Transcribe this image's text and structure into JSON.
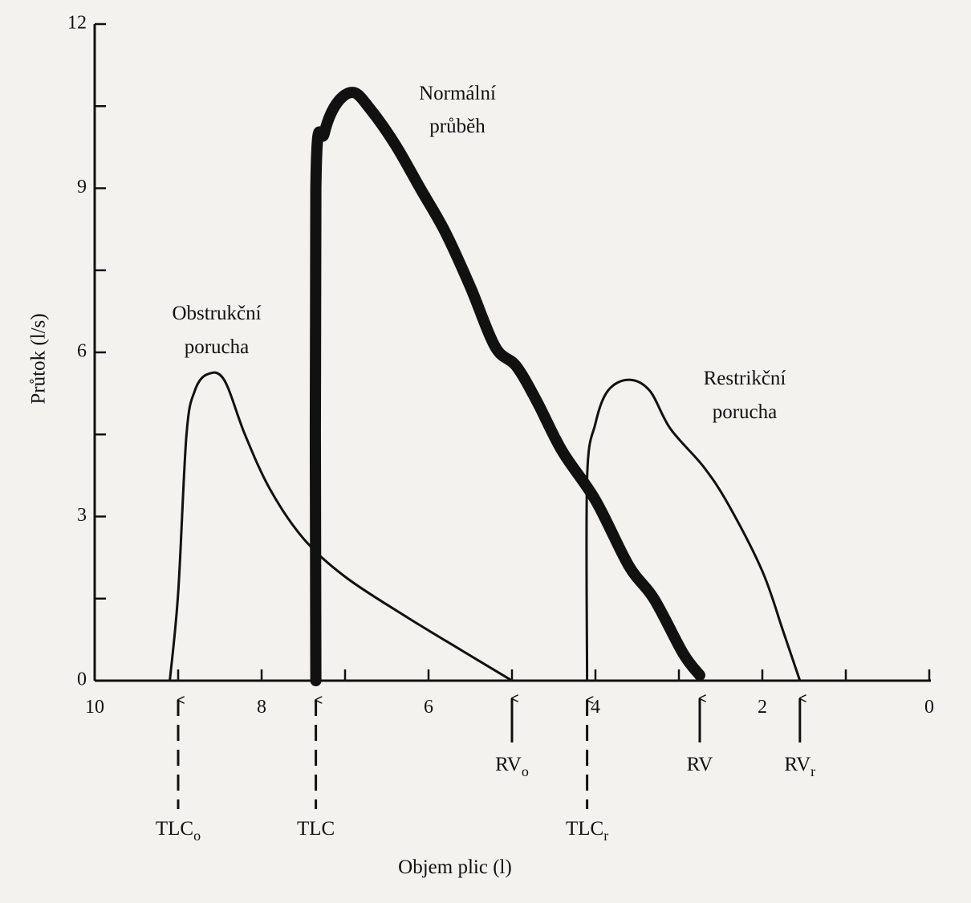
{
  "chart_data": {
    "type": "line",
    "xlabel": "Objem plic (l)",
    "ylabel": "Průtok (l/s)",
    "xlim": [
      10,
      0
    ],
    "ylim": [
      0,
      12
    ],
    "x_ticks": [
      10,
      8,
      6,
      4,
      2,
      0
    ],
    "x_tick_labels": [
      "10",
      "8",
      "6",
      "4",
      "2",
      "0"
    ],
    "y_ticks": [
      0,
      3,
      6,
      9,
      12
    ],
    "y_tick_labels": [
      "0",
      "3",
      "6",
      "9",
      "12"
    ],
    "minor_x_ticks": [
      9,
      7,
      5,
      3,
      1
    ],
    "minor_y_ticks": [
      1.5,
      4.5,
      7.5,
      10.5
    ],
    "series": [
      {
        "name": "Obstrukční porucha",
        "labels": [
          "Obstrukční",
          "porucha"
        ],
        "style": "thin",
        "points": [
          [
            9.1,
            0
          ],
          [
            9.0,
            1.6
          ],
          [
            8.9,
            4.5
          ],
          [
            8.8,
            5.3
          ],
          [
            8.65,
            5.6
          ],
          [
            8.45,
            5.5
          ],
          [
            8.2,
            4.5
          ],
          [
            7.9,
            3.5
          ],
          [
            7.5,
            2.6
          ],
          [
            7.0,
            1.9
          ],
          [
            6.3,
            1.2
          ],
          [
            5.6,
            0.55
          ],
          [
            5.0,
            0
          ]
        ]
      },
      {
        "name": "Normální průběh",
        "labels": [
          "Normální",
          "průběh"
        ],
        "style": "thick",
        "points": [
          [
            7.35,
            0
          ],
          [
            7.35,
            9.0
          ],
          [
            7.25,
            10.0
          ],
          [
            7.1,
            10.55
          ],
          [
            6.9,
            10.75
          ],
          [
            6.7,
            10.45
          ],
          [
            6.4,
            9.8
          ],
          [
            6.1,
            9.0
          ],
          [
            5.8,
            8.2
          ],
          [
            5.5,
            7.2
          ],
          [
            5.2,
            6.1
          ],
          [
            4.95,
            5.75
          ],
          [
            4.7,
            5.1
          ],
          [
            4.4,
            4.2
          ],
          [
            4.0,
            3.3
          ],
          [
            3.6,
            2.1
          ],
          [
            3.3,
            1.5
          ],
          [
            2.95,
            0.5
          ],
          [
            2.75,
            0.1
          ]
        ]
      },
      {
        "name": "Restrikční porucha",
        "labels": [
          "Restrikční",
          "porucha"
        ],
        "style": "thin",
        "points": [
          [
            4.1,
            0
          ],
          [
            4.1,
            3.7
          ],
          [
            4.0,
            4.7
          ],
          [
            3.85,
            5.3
          ],
          [
            3.6,
            5.5
          ],
          [
            3.35,
            5.3
          ],
          [
            3.1,
            4.6
          ],
          [
            2.7,
            3.9
          ],
          [
            2.4,
            3.2
          ],
          [
            2.0,
            2.0
          ],
          [
            1.75,
            0.9
          ],
          [
            1.55,
            0
          ]
        ]
      }
    ],
    "markers": [
      {
        "label": "TLC",
        "sub": "o",
        "x": 9.0,
        "dashed": true
      },
      {
        "label": "TLC",
        "sub": "",
        "x": 7.35,
        "dashed": true
      },
      {
        "label": "RV",
        "sub": "o",
        "x": 5.0,
        "dashed": false
      },
      {
        "label": "TLC",
        "sub": "r",
        "x": 4.1,
        "dashed": true
      },
      {
        "label": "RV",
        "sub": "",
        "x": 2.75,
        "dashed": false
      },
      {
        "label": "RV",
        "sub": "r",
        "x": 1.55,
        "dashed": false
      }
    ]
  }
}
